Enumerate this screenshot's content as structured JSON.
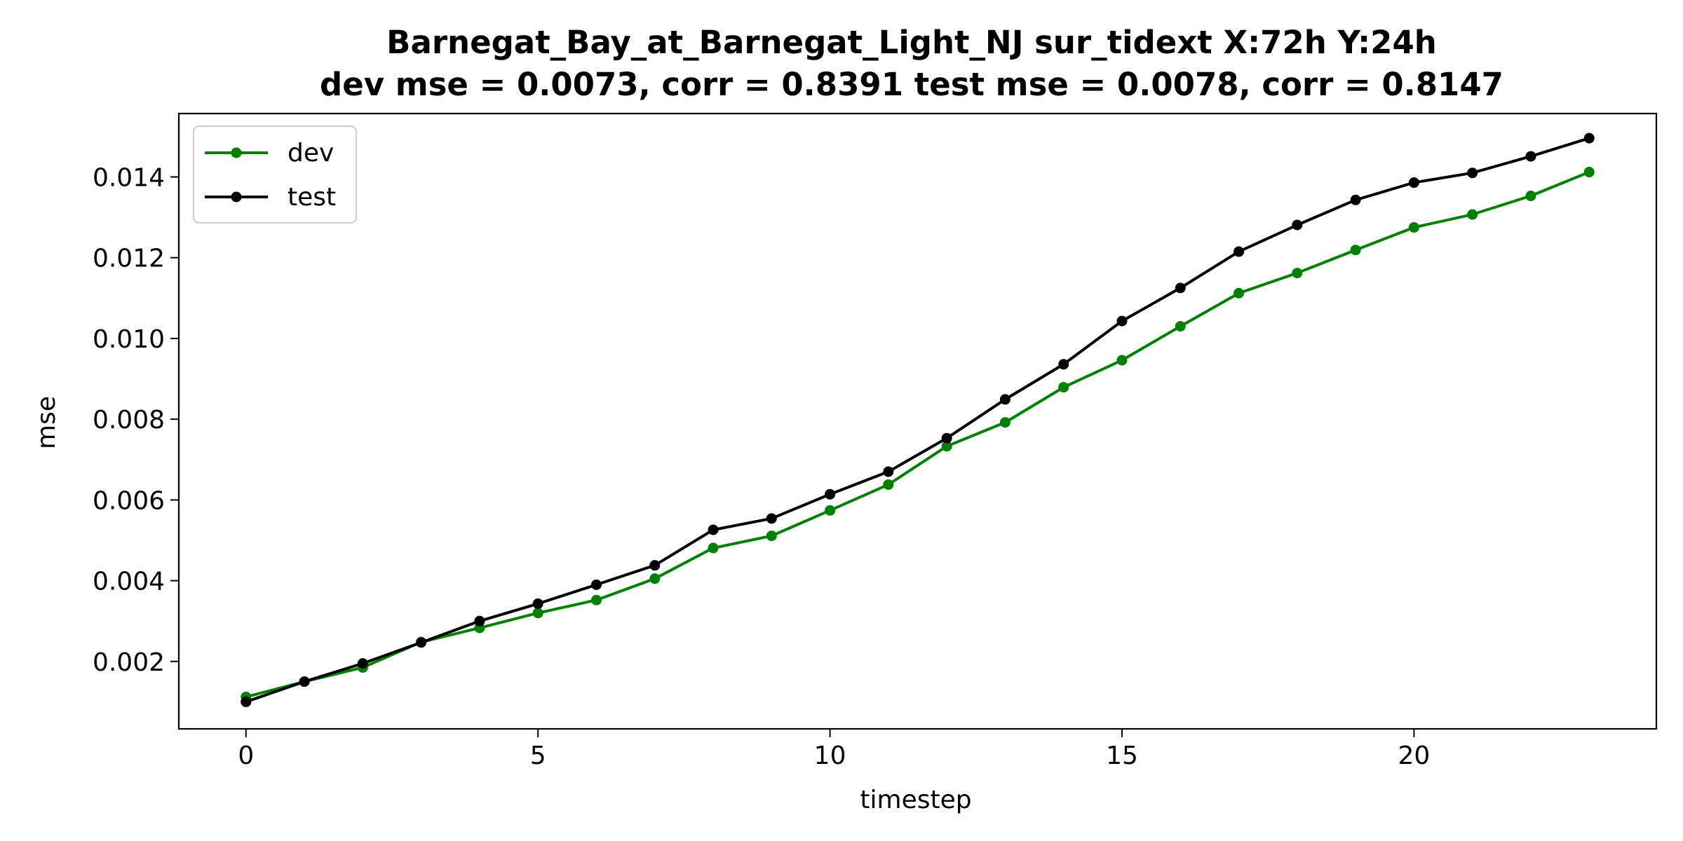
{
  "chart_data": {
    "type": "line",
    "title": "Barnegat_Bay_at_Barnegat_Light_NJ   sur_tidext   X:72h   Y:24h",
    "subtitle": "dev mse = 0.0073, corr = 0.8391   test mse = 0.0078, corr = 0.8147",
    "xlabel": "timestep",
    "ylabel": "mse",
    "xlim": [
      -1.15,
      24.15
    ],
    "ylim": [
      0.00033,
      0.01557
    ],
    "xticks": [
      0,
      5,
      10,
      15,
      20
    ],
    "xtick_labels": [
      "0",
      "5",
      "10",
      "15",
      "20"
    ],
    "yticks": [
      0.002,
      0.004,
      0.006,
      0.008,
      0.01,
      0.012,
      0.014
    ],
    "ytick_labels": [
      "0.002",
      "0.004",
      "0.006",
      "0.008",
      "0.010",
      "0.012",
      "0.014"
    ],
    "grid": false,
    "legend_position": "upper-left",
    "x": [
      0,
      1,
      2,
      3,
      4,
      5,
      6,
      7,
      8,
      9,
      10,
      11,
      12,
      13,
      14,
      15,
      16,
      17,
      18,
      19,
      20,
      21,
      22,
      23
    ],
    "series": [
      {
        "name": "dev",
        "color": "#008000",
        "marker": "circle",
        "values": [
          0.00112,
          0.0015,
          0.00185,
          0.00248,
          0.00283,
          0.0032,
          0.00352,
          0.00405,
          0.00481,
          0.00511,
          0.00574,
          0.00638,
          0.00733,
          0.00792,
          0.00879,
          0.00946,
          0.0103,
          0.01112,
          0.01162,
          0.01219,
          0.01275,
          0.01307,
          0.01353,
          0.01412
        ]
      },
      {
        "name": "test",
        "color": "#000000",
        "marker": "circle",
        "values": [
          0.001,
          0.0015,
          0.00195,
          0.00247,
          0.003,
          0.00343,
          0.0039,
          0.00438,
          0.00526,
          0.00554,
          0.00614,
          0.0067,
          0.00753,
          0.00849,
          0.00936,
          0.01043,
          0.01125,
          0.01215,
          0.01281,
          0.01343,
          0.01386,
          0.0141,
          0.01451,
          0.01496
        ]
      }
    ]
  }
}
